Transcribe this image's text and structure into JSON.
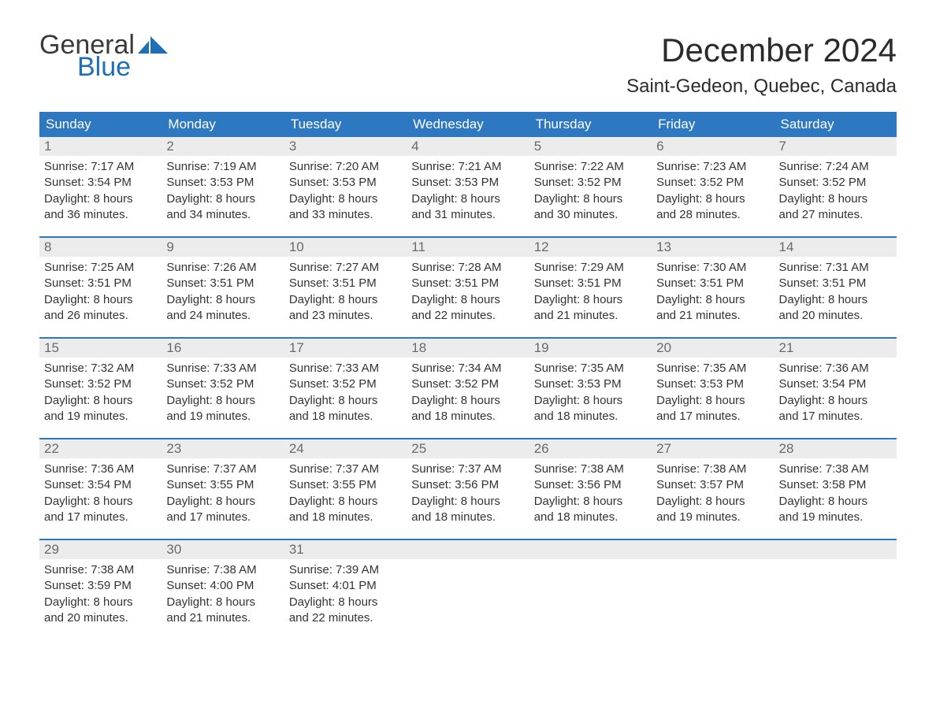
{
  "logo": {
    "text1": "General",
    "text2": "Blue",
    "color1": "#3a3a3a",
    "color2": "#1d6fb8"
  },
  "title": "December 2024",
  "location": "Saint-Gedeon, Quebec, Canada",
  "colors": {
    "header_bg": "#2d78c0",
    "header_text": "#ffffff",
    "daynum_bg": "#ececec",
    "daynum_text": "#6a6a6a",
    "week_border": "#2d78c0",
    "body_text": "#333333",
    "page_bg": "#ffffff"
  },
  "weekdays": [
    "Sunday",
    "Monday",
    "Tuesday",
    "Wednesday",
    "Thursday",
    "Friday",
    "Saturday"
  ],
  "weeks": [
    [
      {
        "n": "1",
        "sr": "7:17 AM",
        "ss": "3:54 PM",
        "dl": "8 hours and 36 minutes."
      },
      {
        "n": "2",
        "sr": "7:19 AM",
        "ss": "3:53 PM",
        "dl": "8 hours and 34 minutes."
      },
      {
        "n": "3",
        "sr": "7:20 AM",
        "ss": "3:53 PM",
        "dl": "8 hours and 33 minutes."
      },
      {
        "n": "4",
        "sr": "7:21 AM",
        "ss": "3:53 PM",
        "dl": "8 hours and 31 minutes."
      },
      {
        "n": "5",
        "sr": "7:22 AM",
        "ss": "3:52 PM",
        "dl": "8 hours and 30 minutes."
      },
      {
        "n": "6",
        "sr": "7:23 AM",
        "ss": "3:52 PM",
        "dl": "8 hours and 28 minutes."
      },
      {
        "n": "7",
        "sr": "7:24 AM",
        "ss": "3:52 PM",
        "dl": "8 hours and 27 minutes."
      }
    ],
    [
      {
        "n": "8",
        "sr": "7:25 AM",
        "ss": "3:51 PM",
        "dl": "8 hours and 26 minutes."
      },
      {
        "n": "9",
        "sr": "7:26 AM",
        "ss": "3:51 PM",
        "dl": "8 hours and 24 minutes."
      },
      {
        "n": "10",
        "sr": "7:27 AM",
        "ss": "3:51 PM",
        "dl": "8 hours and 23 minutes."
      },
      {
        "n": "11",
        "sr": "7:28 AM",
        "ss": "3:51 PM",
        "dl": "8 hours and 22 minutes."
      },
      {
        "n": "12",
        "sr": "7:29 AM",
        "ss": "3:51 PM",
        "dl": "8 hours and 21 minutes."
      },
      {
        "n": "13",
        "sr": "7:30 AM",
        "ss": "3:51 PM",
        "dl": "8 hours and 21 minutes."
      },
      {
        "n": "14",
        "sr": "7:31 AM",
        "ss": "3:51 PM",
        "dl": "8 hours and 20 minutes."
      }
    ],
    [
      {
        "n": "15",
        "sr": "7:32 AM",
        "ss": "3:52 PM",
        "dl": "8 hours and 19 minutes."
      },
      {
        "n": "16",
        "sr": "7:33 AM",
        "ss": "3:52 PM",
        "dl": "8 hours and 19 minutes."
      },
      {
        "n": "17",
        "sr": "7:33 AM",
        "ss": "3:52 PM",
        "dl": "8 hours and 18 minutes."
      },
      {
        "n": "18",
        "sr": "7:34 AM",
        "ss": "3:52 PM",
        "dl": "8 hours and 18 minutes."
      },
      {
        "n": "19",
        "sr": "7:35 AM",
        "ss": "3:53 PM",
        "dl": "8 hours and 18 minutes."
      },
      {
        "n": "20",
        "sr": "7:35 AM",
        "ss": "3:53 PM",
        "dl": "8 hours and 17 minutes."
      },
      {
        "n": "21",
        "sr": "7:36 AM",
        "ss": "3:54 PM",
        "dl": "8 hours and 17 minutes."
      }
    ],
    [
      {
        "n": "22",
        "sr": "7:36 AM",
        "ss": "3:54 PM",
        "dl": "8 hours and 17 minutes."
      },
      {
        "n": "23",
        "sr": "7:37 AM",
        "ss": "3:55 PM",
        "dl": "8 hours and 17 minutes."
      },
      {
        "n": "24",
        "sr": "7:37 AM",
        "ss": "3:55 PM",
        "dl": "8 hours and 18 minutes."
      },
      {
        "n": "25",
        "sr": "7:37 AM",
        "ss": "3:56 PM",
        "dl": "8 hours and 18 minutes."
      },
      {
        "n": "26",
        "sr": "7:38 AM",
        "ss": "3:56 PM",
        "dl": "8 hours and 18 minutes."
      },
      {
        "n": "27",
        "sr": "7:38 AM",
        "ss": "3:57 PM",
        "dl": "8 hours and 19 minutes."
      },
      {
        "n": "28",
        "sr": "7:38 AM",
        "ss": "3:58 PM",
        "dl": "8 hours and 19 minutes."
      }
    ],
    [
      {
        "n": "29",
        "sr": "7:38 AM",
        "ss": "3:59 PM",
        "dl": "8 hours and 20 minutes."
      },
      {
        "n": "30",
        "sr": "7:38 AM",
        "ss": "4:00 PM",
        "dl": "8 hours and 21 minutes."
      },
      {
        "n": "31",
        "sr": "7:39 AM",
        "ss": "4:01 PM",
        "dl": "8 hours and 22 minutes."
      },
      null,
      null,
      null,
      null
    ]
  ],
  "labels": {
    "sunrise": "Sunrise:",
    "sunset": "Sunset:",
    "daylight": "Daylight:"
  }
}
